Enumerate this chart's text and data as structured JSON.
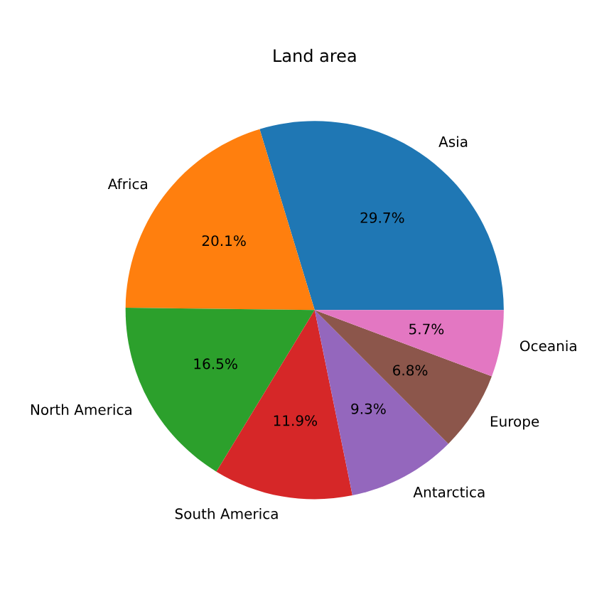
{
  "chart_data": {
    "type": "pie",
    "title": "Land area",
    "categories": [
      "Asia",
      "Africa",
      "North America",
      "South America",
      "Antarctica",
      "Europe",
      "Oceania"
    ],
    "values": [
      29.7,
      20.1,
      16.5,
      11.9,
      9.3,
      6.8,
      5.7
    ],
    "value_labels": [
      "29.7%",
      "20.1%",
      "16.5%",
      "11.9%",
      "9.3%",
      "6.8%",
      "5.7%"
    ],
    "colors": [
      "#1f77b4",
      "#ff7f0e",
      "#2ca02c",
      "#d62728",
      "#9467bd",
      "#8c564b",
      "#e377c2"
    ],
    "legend": false
  }
}
